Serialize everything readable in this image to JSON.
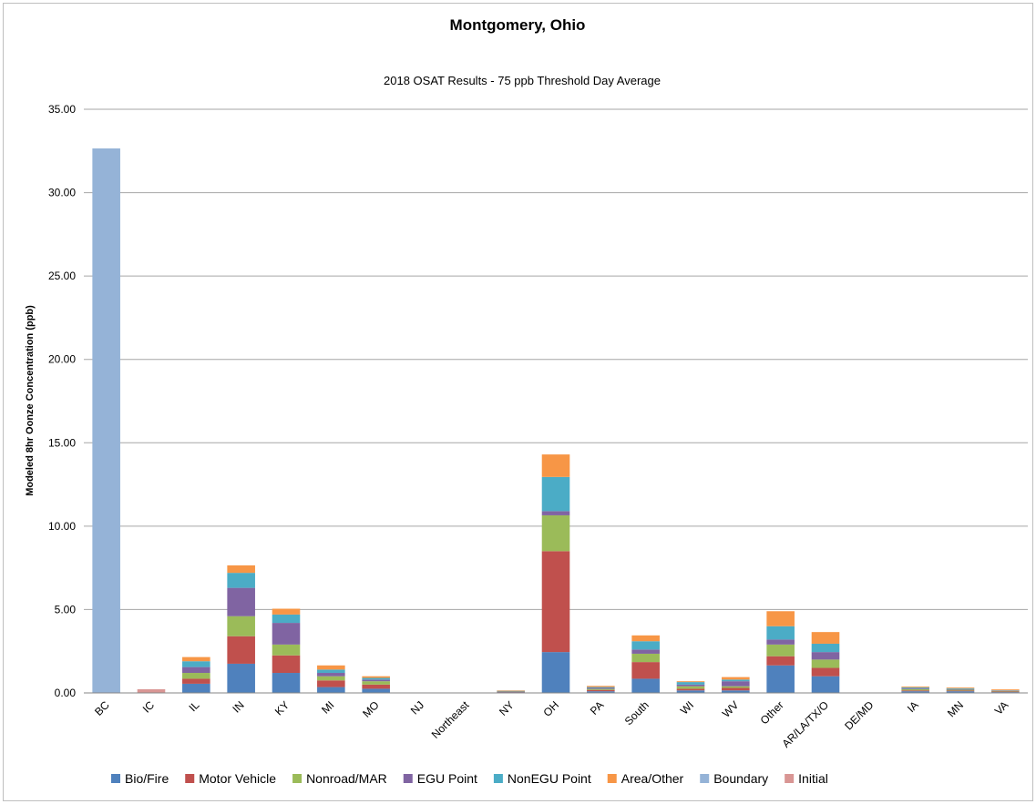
{
  "chart_data": {
    "type": "bar",
    "stacked": true,
    "title": "Montgomery, Ohio",
    "subtitle": "2018 OSAT Results - 75 ppb Threshold Day Average",
    "xlabel": "",
    "ylabel": "Modeled 8hr Oonze Concentration (ppb)",
    "ylim": [
      0,
      35
    ],
    "yticks": [
      "0.00",
      "5.00",
      "10.00",
      "15.00",
      "20.00",
      "25.00",
      "30.00",
      "35.00"
    ],
    "ytick_values": [
      0,
      5,
      10,
      15,
      20,
      25,
      30,
      35
    ],
    "grid": true,
    "legend_position": "bottom",
    "categories": [
      "BC",
      "IC",
      "IL",
      "IN",
      "KY",
      "MI",
      "MO",
      "NJ",
      "Northeast",
      "NY",
      "OH",
      "PA",
      "South",
      "WI",
      "WV",
      "Other",
      "AR/LA/TX/O",
      "DE/MD",
      "IA",
      "MN",
      "VA"
    ],
    "series": [
      {
        "name": "Bio/Fire",
        "color": "#4f81bd",
        "values": [
          0,
          0,
          0.55,
          1.75,
          1.2,
          0.35,
          0.25,
          0,
          0,
          0.05,
          2.45,
          0.1,
          0.85,
          0.15,
          0.15,
          1.65,
          1.0,
          0.02,
          0.1,
          0.1,
          0.05
        ]
      },
      {
        "name": "Motor Vehicle",
        "color": "#c0504d",
        "values": [
          0,
          0,
          0.3,
          1.65,
          1.05,
          0.4,
          0.25,
          0,
          0,
          0.02,
          6.05,
          0.08,
          1.0,
          0.1,
          0.15,
          0.55,
          0.5,
          0,
          0.05,
          0.04,
          0.03
        ]
      },
      {
        "name": "Nonroad/MAR",
        "color": "#9bbb59",
        "values": [
          0,
          0,
          0.35,
          1.2,
          0.65,
          0.25,
          0.2,
          0,
          0,
          0.02,
          2.15,
          0.06,
          0.5,
          0.15,
          0.1,
          0.7,
          0.5,
          0,
          0.08,
          0.05,
          0.03
        ]
      },
      {
        "name": "EGU Point",
        "color": "#8064a2",
        "values": [
          0,
          0,
          0.35,
          1.7,
          1.3,
          0.2,
          0.1,
          0,
          0,
          0.02,
          0.25,
          0.06,
          0.25,
          0.1,
          0.3,
          0.3,
          0.45,
          0,
          0.05,
          0.04,
          0.02
        ]
      },
      {
        "name": "NonEGU Point",
        "color": "#4bacc6",
        "values": [
          0,
          0,
          0.35,
          0.9,
          0.5,
          0.2,
          0.1,
          0,
          0,
          0.02,
          2.05,
          0.05,
          0.5,
          0.15,
          0.1,
          0.8,
          0.5,
          0,
          0.05,
          0.04,
          0.02
        ]
      },
      {
        "name": "Area/Other",
        "color": "#f79646",
        "values": [
          0,
          0,
          0.25,
          0.45,
          0.35,
          0.25,
          0.1,
          0,
          0,
          0.02,
          1.35,
          0.07,
          0.35,
          0.05,
          0.15,
          0.9,
          0.7,
          0,
          0.05,
          0.05,
          0.06
        ]
      },
      {
        "name": "Boundary",
        "color": "#95b3d7",
        "values": [
          32.65,
          0,
          0,
          0,
          0,
          0,
          0,
          0,
          0,
          0,
          0,
          0,
          0,
          0,
          0,
          0,
          0,
          0,
          0,
          0,
          0
        ]
      },
      {
        "name": "Initial",
        "color": "#d99694",
        "values": [
          0,
          0.22,
          0,
          0,
          0,
          0,
          0,
          0,
          0,
          0,
          0,
          0,
          0,
          0,
          0,
          0,
          0,
          0,
          0,
          0,
          0
        ]
      }
    ]
  }
}
